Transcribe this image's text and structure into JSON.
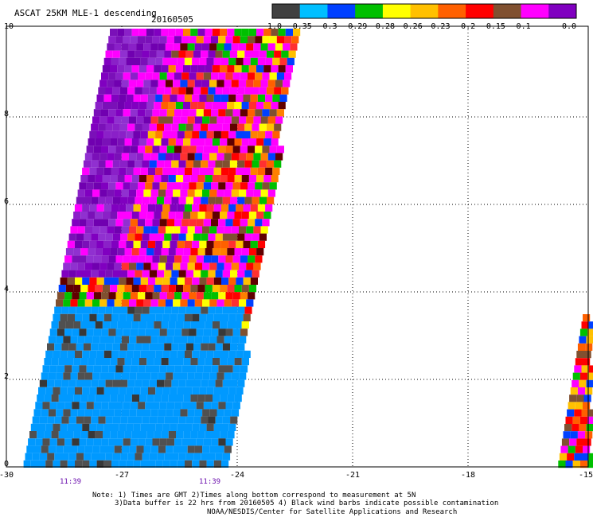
{
  "header": {
    "title": "ASCAT 25KM MLE-1 descending",
    "date": "20160505"
  },
  "colorbar": {
    "labels": [
      "-1.0",
      "-0.35",
      "-0.3",
      "-0.29",
      "-0.28",
      "-0.26",
      "-0.23",
      "-0.2",
      "-0.15",
      "-0.1",
      "0.0"
    ],
    "colors": [
      "#404040",
      "#00bfff",
      "#0040ff",
      "#00c000",
      "#ffff00",
      "#ffc000",
      "#ff6000",
      "#ff0000",
      "#805030",
      "#ff00ff",
      "#8000c0"
    ]
  },
  "axes": {
    "x_ticks": [
      "-30",
      "-27",
      "-24",
      "-21",
      "-18",
      "-15"
    ],
    "y_ticks": [
      "0",
      "2",
      "4",
      "6",
      "8",
      "10"
    ]
  },
  "times": [
    "11:39",
    "11:39"
  ],
  "notes": {
    "line1": "Note: 1) Times are GMT 2)Times along bottom correspond to measurement at 5N",
    "line2": "3)Data buffer is 22 hrs from 20160505 4) Black wind barbs indicate possible contamination",
    "line3": "NOAA/NESDIS/Center for Satellite Applications and Research"
  }
}
